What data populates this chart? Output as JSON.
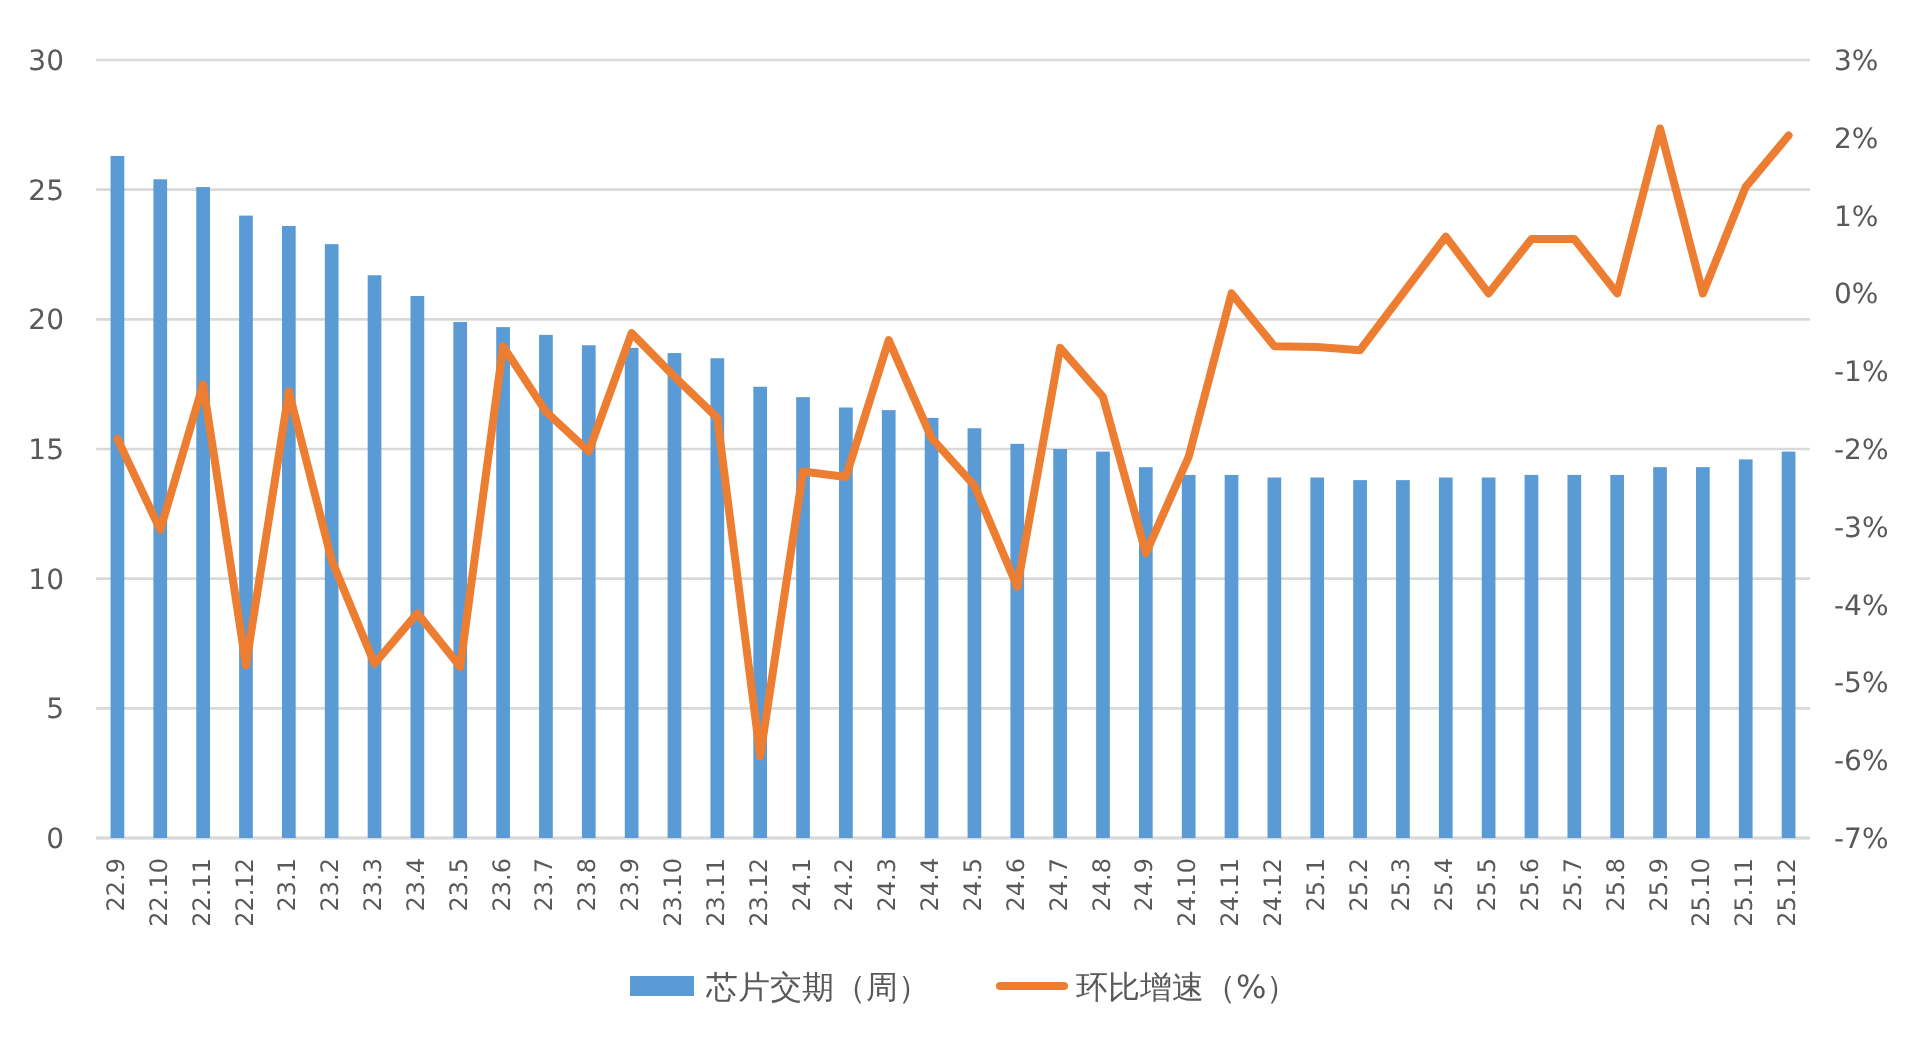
{
  "chart_data": {
    "type": "bar",
    "categories": [
      "22.9",
      "22.10",
      "22.11",
      "22.12",
      "23.1",
      "23.2",
      "23.3",
      "23.4",
      "23.5",
      "23.6",
      "23.7",
      "23.8",
      "23.9",
      "23.10",
      "23.11",
      "23.12",
      "24.1",
      "24.2",
      "24.3",
      "24.4",
      "24.5",
      "24.6",
      "24.7",
      "24.8",
      "24.9",
      "24.10",
      "24.11",
      "24.12",
      "25.1",
      "25.2",
      "25.3",
      "25.4",
      "25.5",
      "25.6",
      "25.7",
      "25.8",
      "25.9",
      "25.10",
      "25.11",
      "25.12"
    ],
    "series": [
      {
        "name": "芯片交期（周）",
        "color": "#5b9bd5",
        "values": [
          26.3,
          25.4,
          25.1,
          24.0,
          23.6,
          22.9,
          21.7,
          20.9,
          19.9,
          19.7,
          19.4,
          19.0,
          18.9,
          18.7,
          18.5,
          17.4,
          17.0,
          16.6,
          16.5,
          16.2,
          15.8,
          15.2,
          15.0,
          14.9,
          14.3,
          14.0,
          14.0,
          13.9,
          13.9,
          13.8,
          13.8,
          13.9,
          13.9,
          14.0,
          14.0,
          14.0,
          14.3,
          14.3,
          14.6,
          14.9
        ]
      },
      {
        "name": "环比增速（%）",
        "type": "line",
        "axis": "y2",
        "color": "#ed7d31",
        "values": [
          -1.87,
          -3.04,
          -1.17,
          -4.78,
          -1.26,
          -3.43,
          -4.76,
          -4.11,
          -4.8,
          -0.68,
          -1.52,
          -2.03,
          -0.51,
          -1.07,
          -1.6,
          -5.95,
          -2.29,
          -2.36,
          -0.6,
          -1.86,
          -2.47,
          -3.77,
          -0.7,
          -1.33,
          -3.34,
          -2.1,
          0.0,
          -0.68,
          -0.69,
          -0.73,
          0.0,
          0.73,
          0.0,
          0.7,
          0.7,
          0.0,
          2.12,
          0.0,
          1.37,
          2.03
        ]
      }
    ],
    "ylim": [
      0,
      30
    ],
    "yticks": [
      0,
      5,
      10,
      15,
      20,
      25,
      30
    ],
    "y2lim": [
      -7,
      3
    ],
    "y2ticks": [
      {
        "value": -7,
        "label": "-7%"
      },
      {
        "value": -6,
        "label": "-6%"
      },
      {
        "value": -5,
        "label": "-5%"
      },
      {
        "value": -4,
        "label": "-4%"
      },
      {
        "value": -3,
        "label": "-3%"
      },
      {
        "value": -2,
        "label": "-2%"
      },
      {
        "value": -1,
        "label": "-1%"
      },
      {
        "value": 0,
        "label": "0%"
      },
      {
        "value": 1,
        "label": "1%"
      },
      {
        "value": 2,
        "label": "2%"
      },
      {
        "value": 3,
        "label": "3%"
      }
    ],
    "grid": "y",
    "legend": "bottom",
    "marker": "none",
    "line_style": "solid"
  }
}
